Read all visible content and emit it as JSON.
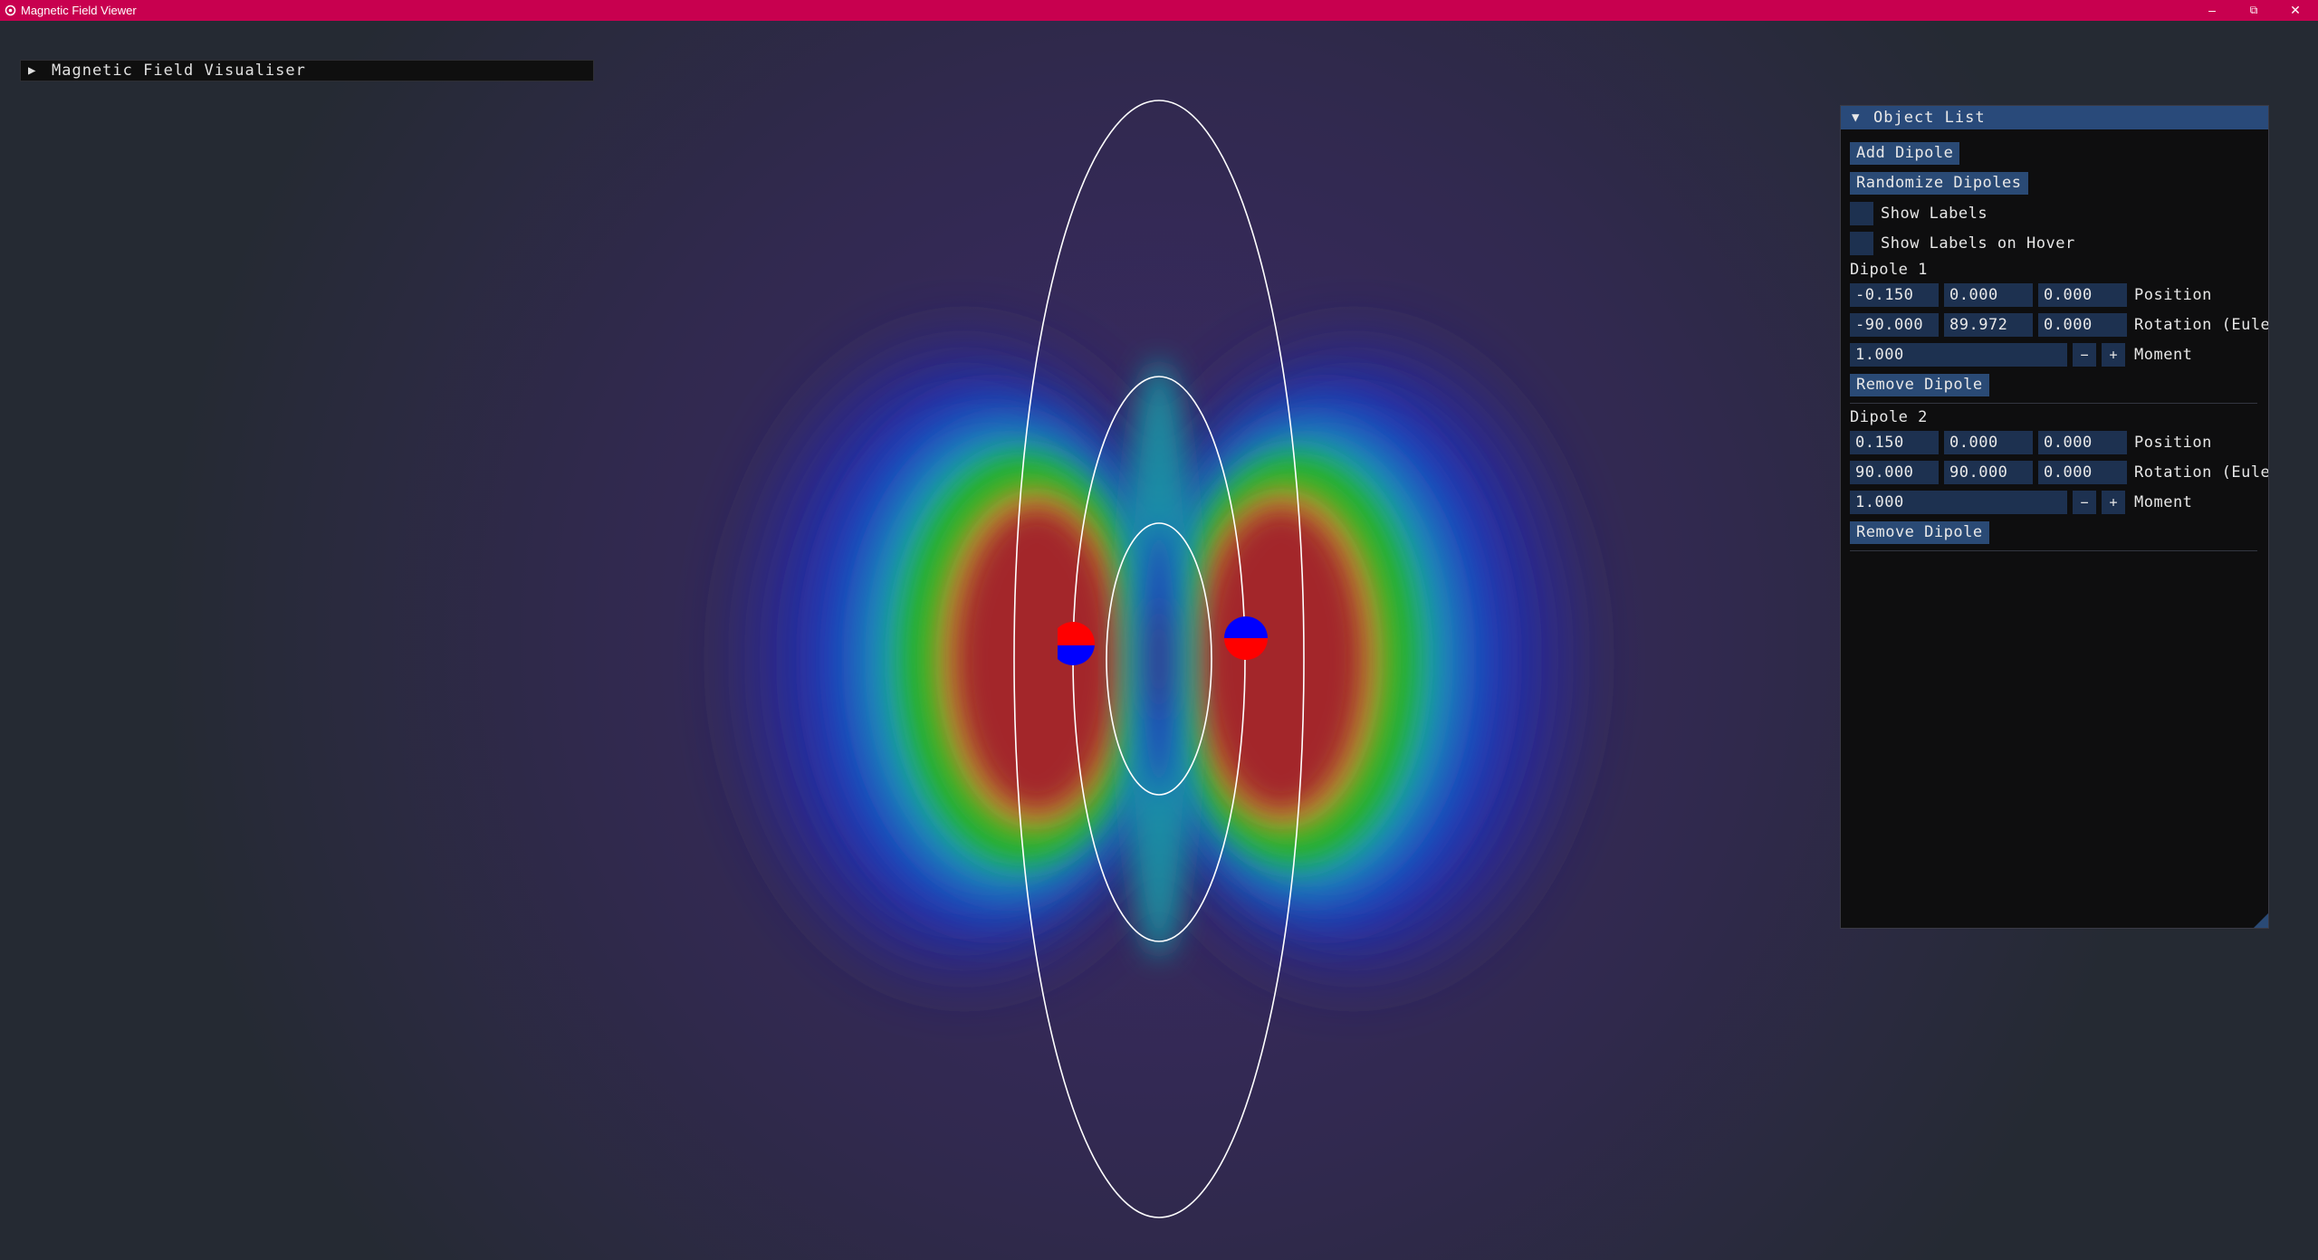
{
  "window": {
    "title": "Magnetic Field Viewer",
    "minimize": "–",
    "maximize": "⧉",
    "close": "✕"
  },
  "visualiser": {
    "title": "Magnetic Field Visualiser",
    "arrow": "▶"
  },
  "object_list": {
    "title": "Object List",
    "arrow": "▼",
    "add_dipole": "Add Dipole",
    "randomize_dipoles": "Randomize Dipoles",
    "show_labels": {
      "label": "Show Labels",
      "checked": false
    },
    "show_labels_on_hover": {
      "label": "Show Labels on Hover",
      "checked": false
    },
    "dipoles": [
      {
        "name": "Dipole 1",
        "position": [
          "-0.150",
          "0.000",
          "0.000"
        ],
        "position_label": "Position",
        "rotation": [
          "-90.000",
          "89.972",
          "0.000"
        ],
        "rotation_label": "Rotation (Eule",
        "moment": "1.000",
        "moment_label": "Moment",
        "minus": "−",
        "plus": "+",
        "remove": "Remove Dipole"
      },
      {
        "name": "Dipole 2",
        "position": [
          "0.150",
          "0.000",
          "0.000"
        ],
        "position_label": "Position",
        "rotation": [
          "90.000",
          "90.000",
          "0.000"
        ],
        "rotation_label": "Rotation (Eule",
        "moment": "1.000",
        "moment_label": "Moment",
        "minus": "−",
        "plus": "+",
        "remove": "Remove Dipole"
      }
    ]
  },
  "colors": {
    "titlebar": "#c8004f",
    "field_high": "#a02828",
    "field_mid": "#20b020",
    "field_low": "#1840c0",
    "pole_north": "#ff0000",
    "pole_south": "#0000ff",
    "panel_button": "#2a4a75"
  }
}
